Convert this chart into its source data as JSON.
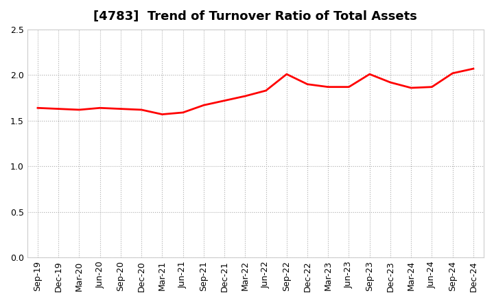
{
  "title": "[4783]  Trend of Turnover Ratio of Total Assets",
  "labels": [
    "Sep-19",
    "Dec-19",
    "Mar-20",
    "Jun-20",
    "Sep-20",
    "Dec-20",
    "Mar-21",
    "Jun-21",
    "Sep-21",
    "Dec-21",
    "Mar-22",
    "Jun-22",
    "Sep-22",
    "Dec-22",
    "Mar-23",
    "Jun-23",
    "Sep-23",
    "Dec-23",
    "Mar-24",
    "Jun-24",
    "Sep-24",
    "Dec-24"
  ],
  "values": [
    1.64,
    1.63,
    1.62,
    1.64,
    1.63,
    1.62,
    1.57,
    1.59,
    1.67,
    1.72,
    1.77,
    1.83,
    2.01,
    1.9,
    1.87,
    1.87,
    2.01,
    1.92,
    1.86,
    1.87,
    2.02,
    2.07
  ],
  "line_color": "#ff0000",
  "line_width": 2.0,
  "ylim": [
    0.0,
    2.5
  ],
  "yticks": [
    0.0,
    0.5,
    1.0,
    1.5,
    2.0,
    2.5
  ],
  "grid_color": "#aaaaaa",
  "grid_linestyle": ":",
  "bg_color": "#ffffff",
  "plot_bg_color": "#ffffff",
  "title_fontsize": 13,
  "tick_fontsize": 9,
  "fill_color": "#ffb3b3",
  "fill_alpha": 0.45
}
